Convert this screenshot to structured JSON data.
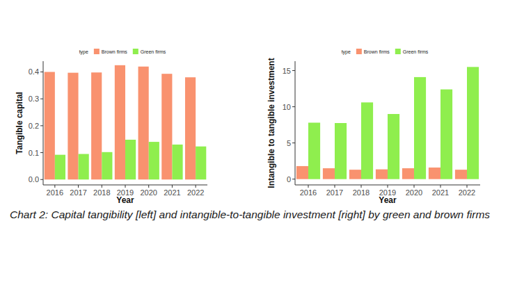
{
  "caption": "Chart 2: Capital tangibility [left] and intangible-to-tangible investment [right] by green and brown firms",
  "chart_data": [
    {
      "type": "bar",
      "xlabel": "Year",
      "ylabel": "Tangible capital",
      "legend_title": "type",
      "legend": "top",
      "grid": false,
      "categories": [
        "2016",
        "2017",
        "2018",
        "2019",
        "2020",
        "2021",
        "2022"
      ],
      "series": [
        {
          "name": "Brown firms",
          "color": "#f9926f",
          "values": [
            0.4,
            0.397,
            0.398,
            0.425,
            0.42,
            0.393,
            0.38
          ]
        },
        {
          "name": "Green firms",
          "color": "#8fee4e",
          "values": [
            0.092,
            0.095,
            0.102,
            0.148,
            0.14,
            0.13,
            0.123
          ]
        }
      ],
      "ylim": [
        -0.02,
        0.44
      ],
      "yticks": [
        {
          "value": 0,
          "label": "0.0"
        },
        0.1,
        0.2,
        0.3,
        0.4
      ]
    },
    {
      "type": "bar",
      "xlabel": "Year",
      "ylabel": "Intangible to tangible investment",
      "legend_title": "type",
      "legend": "top",
      "grid": false,
      "categories": [
        "2016",
        "2017",
        "2018",
        "2019",
        "2020",
        "2021",
        "2022"
      ],
      "series": [
        {
          "name": "Brown firms",
          "color": "#f9926f",
          "values": [
            1.8,
            1.5,
            1.3,
            1.35,
            1.5,
            1.6,
            1.3
          ]
        },
        {
          "name": "Green firms",
          "color": "#8fee4e",
          "values": [
            7.8,
            7.75,
            10.6,
            9.0,
            14.1,
            12.4,
            15.5
          ]
        }
      ],
      "ylim": [
        -0.8,
        16.3
      ],
      "yticks": [
        0,
        5,
        10,
        15
      ]
    }
  ]
}
